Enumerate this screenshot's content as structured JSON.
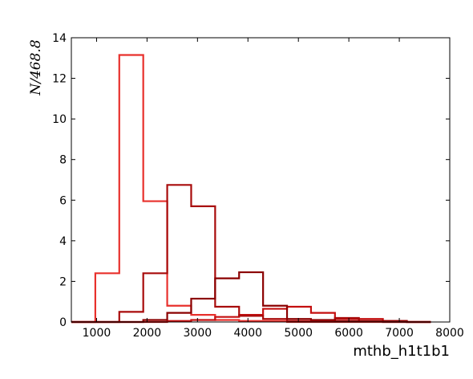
{
  "chart_data": {
    "type": "histogram",
    "xlabel": "mthb_h1t1b1",
    "ylabel": "N/468.8",
    "xlim": [
      500,
      8000
    ],
    "ylim": [
      0,
      14
    ],
    "x_ticks": [
      1000,
      2000,
      3000,
      4000,
      5000,
      6000,
      7000,
      8000
    ],
    "y_ticks": [
      0,
      2,
      4,
      6,
      8,
      10,
      12,
      14
    ],
    "grid": false,
    "bin_edges": [
      500,
      975,
      1450,
      1925,
      2400,
      2875,
      3350,
      3825,
      4300,
      4775,
      5250,
      5725,
      6200,
      6675,
      7150,
      7625
    ],
    "series": [
      {
        "color": "#e8302c",
        "values": [
          0,
          2.4,
          13.15,
          5.95,
          0.8,
          0.35,
          0.1,
          0.05,
          0.05,
          0,
          0,
          0,
          0,
          0,
          0
        ]
      },
      {
        "color": "#c40f0f",
        "values": [
          0,
          0,
          0,
          0,
          0.05,
          0.1,
          0.25,
          0.35,
          0.65,
          0.75,
          0.45,
          0.15,
          0.15,
          0.05,
          0
        ]
      },
      {
        "color": "#a80b0b",
        "values": [
          0,
          0,
          0.5,
          2.4,
          6.75,
          5.7,
          0.75,
          0.3,
          0.15,
          0.05,
          0.05,
          0.2,
          0.05,
          0,
          0
        ]
      },
      {
        "color": "#8b0000",
        "values": [
          0,
          0,
          0,
          0.1,
          0.45,
          1.15,
          2.15,
          2.45,
          0.8,
          0.15,
          0.1,
          0.05,
          0.05,
          0.05,
          0
        ]
      }
    ]
  }
}
